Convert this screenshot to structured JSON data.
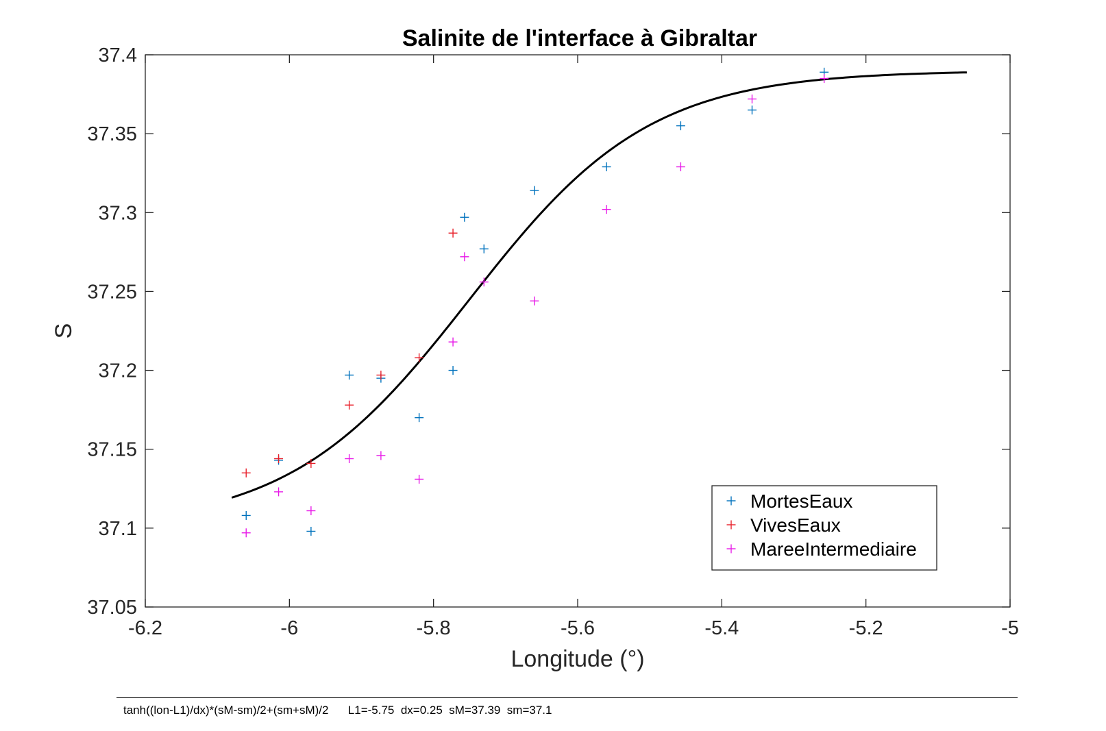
{
  "chart_data": {
    "type": "scatter",
    "title": "Salinite de l'interface à Gibraltar",
    "xlabel": "Longitude (°)",
    "ylabel": "S",
    "xlim": [
      -6.2,
      -5.0
    ],
    "ylim": [
      37.05,
      37.4
    ],
    "x_ticks": [
      -6.2,
      -6.0,
      -5.8,
      -5.6,
      -5.4,
      -5.2,
      -5.0
    ],
    "x_tick_labels": [
      "-6.2",
      "-6",
      "-5.8",
      "-5.6",
      "-5.4",
      "-5.2",
      "-5"
    ],
    "y_ticks": [
      37.05,
      37.1,
      37.15,
      37.2,
      37.25,
      37.3,
      37.35,
      37.4
    ],
    "y_tick_labels": [
      "37.05",
      "37.1",
      "37.15",
      "37.2",
      "37.25",
      "37.3",
      "37.35",
      "37.4"
    ],
    "grid": false,
    "legend_position": "bottom-right",
    "series": [
      {
        "name": "MortesEaux",
        "marker": "+",
        "color": "#0072BD",
        "points": [
          [
            -6.06,
            37.108
          ],
          [
            -6.015,
            37.143
          ],
          [
            -5.97,
            37.098
          ],
          [
            -5.917,
            37.197
          ],
          [
            -5.873,
            37.195
          ],
          [
            -5.82,
            37.17
          ],
          [
            -5.773,
            37.2
          ],
          [
            -5.757,
            37.297
          ],
          [
            -5.73,
            37.277
          ],
          [
            -5.66,
            37.314
          ],
          [
            -5.56,
            37.329
          ],
          [
            -5.457,
            37.355
          ],
          [
            -5.358,
            37.365
          ],
          [
            -5.258,
            37.389
          ]
        ]
      },
      {
        "name": "VivesEaux",
        "marker": "+",
        "color": "#E8202A",
        "points": [
          [
            -6.06,
            37.135
          ],
          [
            -6.015,
            37.144
          ],
          [
            -5.97,
            37.141
          ],
          [
            -5.917,
            37.178
          ],
          [
            -5.873,
            37.197
          ],
          [
            -5.82,
            37.208
          ],
          [
            -5.773,
            37.287
          ]
        ]
      },
      {
        "name": "MareeIntermediaire",
        "marker": "+",
        "color": "#E81BE8",
        "points": [
          [
            -6.06,
            37.097
          ],
          [
            -6.015,
            37.123
          ],
          [
            -5.97,
            37.111
          ],
          [
            -5.917,
            37.144
          ],
          [
            -5.873,
            37.146
          ],
          [
            -5.82,
            37.131
          ],
          [
            -5.773,
            37.218
          ],
          [
            -5.757,
            37.272
          ],
          [
            -5.73,
            37.256
          ],
          [
            -5.66,
            37.244
          ],
          [
            -5.56,
            37.302
          ],
          [
            -5.457,
            37.329
          ],
          [
            -5.358,
            37.372
          ],
          [
            -5.258,
            37.385
          ]
        ]
      }
    ],
    "fit_curve": {
      "color": "#000000",
      "x_range": [
        -6.08,
        -5.06
      ],
      "L1": -5.75,
      "dx": 0.25,
      "sM": 37.39,
      "sm": 37.1
    }
  },
  "footer": {
    "formula": "tanh((lon-L1)/dx)*(sM-sm)/2+(sm+sM)/2      L1=-5.75  dx=0.25  sM=37.39  sm=37.1"
  }
}
